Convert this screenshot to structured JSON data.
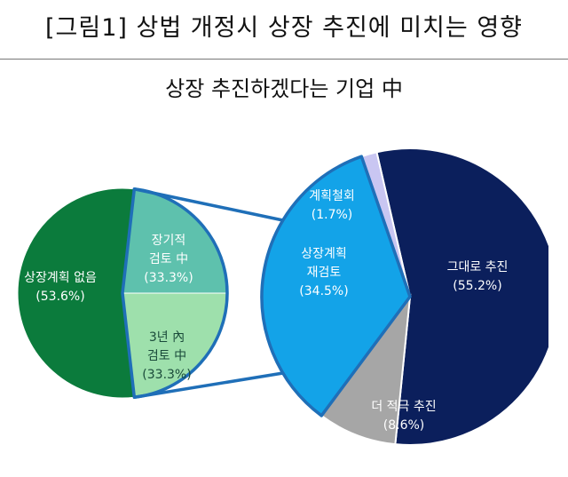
{
  "figure_title": "[그림1] 상법 개정시 상장 추진에 미치는 영향",
  "chart_data": [
    {
      "type": "pie",
      "title": "상장 추진하겠다는 기업 中",
      "slices": [
        {
          "label": "상장계획 없음",
          "value": 53.6,
          "display": "(53.6%)",
          "color": "#0b7b3c",
          "text_color": "#ffffff"
        },
        {
          "label": "장기적\n검토 中",
          "value": 33.3,
          "display": "(33.3%)",
          "color": "#5ec1ad",
          "text_color": "#ffffff"
        },
        {
          "label": "3년 內\n검토 中",
          "value": 33.3,
          "display": "(33.3%)",
          "color": "#9ee0ac",
          "text_color": "#1a4a3a"
        }
      ],
      "note": "Left pie; the 상장 추진 portion is expanded into the right pie"
    },
    {
      "type": "pie",
      "slices": [
        {
          "label": "그대로 추진",
          "value": 55.2,
          "display": "(55.2%)",
          "color": "#0b1f5c",
          "text_color": "#ffffff"
        },
        {
          "label": "더 적극 추진",
          "value": 8.6,
          "display": "(8.6%)",
          "color": "#a6a6a6",
          "text_color": "#ffffff"
        },
        {
          "label": "상장계획\n재검토",
          "value": 34.5,
          "display": "(34.5%)",
          "color": "#13a3e8",
          "text_color": "#ffffff"
        },
        {
          "label": "계획철회",
          "value": 1.7,
          "display": "(1.7%)",
          "color": "#c9c6f2",
          "text_color": "#ffffff"
        }
      ]
    }
  ],
  "colors": {
    "connector": "#1f6fb8",
    "rule": "#777777"
  }
}
